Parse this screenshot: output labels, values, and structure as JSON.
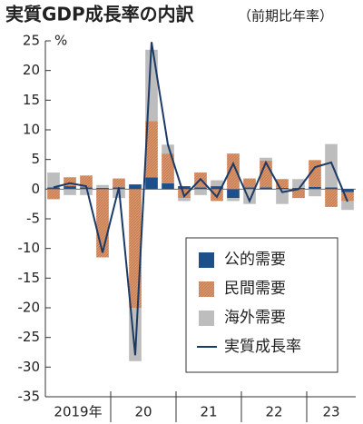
{
  "chart_data": {
    "type": "bar",
    "title": "実質GDP成長率の内訳",
    "subtitle": "（前期比年率）",
    "y_unit": "%",
    "categories": [
      "2019年",
      null,
      null,
      null,
      "20",
      null,
      null,
      null,
      "21",
      null,
      null,
      null,
      "22",
      null,
      null,
      null,
      "23",
      null,
      null
    ],
    "series": [
      {
        "name": "公的需要",
        "color": "#1d4f8a",
        "values": [
          0.3,
          0.5,
          0.3,
          0.2,
          0.3,
          0.8,
          2,
          1,
          0.5,
          0.3,
          0.5,
          -1.5,
          0.3,
          0.3,
          0.2,
          0.2,
          0.4,
          0.3,
          -0.5
        ]
      },
      {
        "name": "民間需要",
        "color": "#d9946a",
        "values": [
          -1.7,
          1.5,
          2,
          -11.5,
          1.5,
          -20,
          9.5,
          5,
          -1.5,
          2.5,
          -2,
          6,
          1.5,
          4.5,
          1.5,
          -1.5,
          4.5,
          -3,
          -1.5
        ]
      },
      {
        "name": "海外需要",
        "color": "#bdbdbd",
        "values": [
          2.5,
          -1,
          -1,
          0.5,
          -1.5,
          -9,
          12,
          1.5,
          -0.5,
          -1,
          1,
          -0.5,
          -2.5,
          0.5,
          -2.5,
          1.5,
          -1.2,
          7.3,
          -1.5
        ]
      },
      {
        "name": "実質成長率",
        "color": "#1c3a66",
        "type": "line",
        "values": [
          0.3,
          1.0,
          0.5,
          -10.7,
          0.3,
          -28,
          24.8,
          7.5,
          -1.2,
          1.7,
          -1.3,
          4.3,
          -2,
          4.5,
          -0.5,
          0,
          3.7,
          4.5,
          -2.1
        ]
      }
    ],
    "ylim": [
      -35,
      25
    ],
    "yticks": [
      -35,
      -30,
      -25,
      -20,
      -15,
      -10,
      -5,
      0,
      5,
      10,
      15,
      20,
      25
    ]
  }
}
